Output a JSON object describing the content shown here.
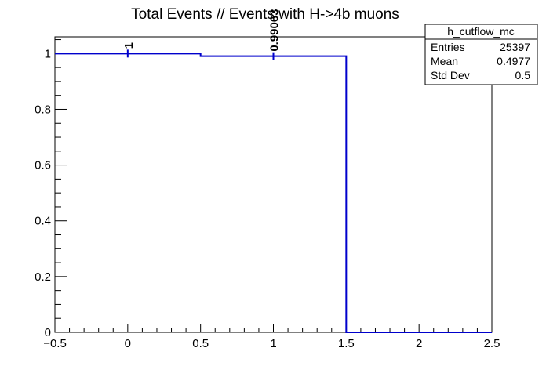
{
  "chart_data": {
    "type": "histogram",
    "title": "Total Events // Events with H->4b muons",
    "xlabel": "",
    "ylabel": "",
    "xlim": [
      -0.5,
      2.5
    ],
    "ylim": [
      0,
      1.06
    ],
    "x_ticks": [
      -0.5,
      0,
      0.5,
      1,
      1.5,
      2,
      2.5
    ],
    "x_tick_labels": [
      "−0.5",
      "0",
      "0.5",
      "1",
      "1.5",
      "2",
      "2.5"
    ],
    "y_ticks": [
      0,
      0.2,
      0.4,
      0.6,
      0.8,
      1
    ],
    "y_tick_labels": [
      "0",
      "0.2",
      "0.4",
      "0.6",
      "0.8",
      "1"
    ],
    "bins": [
      {
        "low": -0.5,
        "high": 0.5,
        "value": 1
      },
      {
        "low": 0.5,
        "high": 1.5,
        "value": 0.99063
      },
      {
        "low": 1.5,
        "high": 2.5,
        "value": 0
      }
    ],
    "bin_labels": [
      {
        "x": 0,
        "value": 1,
        "text": "1"
      },
      {
        "x": 1,
        "value": 0.99063,
        "text": "0.99063"
      }
    ],
    "line_color": "#0000cc",
    "grid": false,
    "legend": "none"
  },
  "stats_box": {
    "title": "h_cutflow_mc",
    "rows": [
      {
        "label": "Entries",
        "value": "25397"
      },
      {
        "label": "Mean",
        "value": "0.4977"
      },
      {
        "label": "Std Dev",
        "value": "0.5"
      }
    ]
  }
}
